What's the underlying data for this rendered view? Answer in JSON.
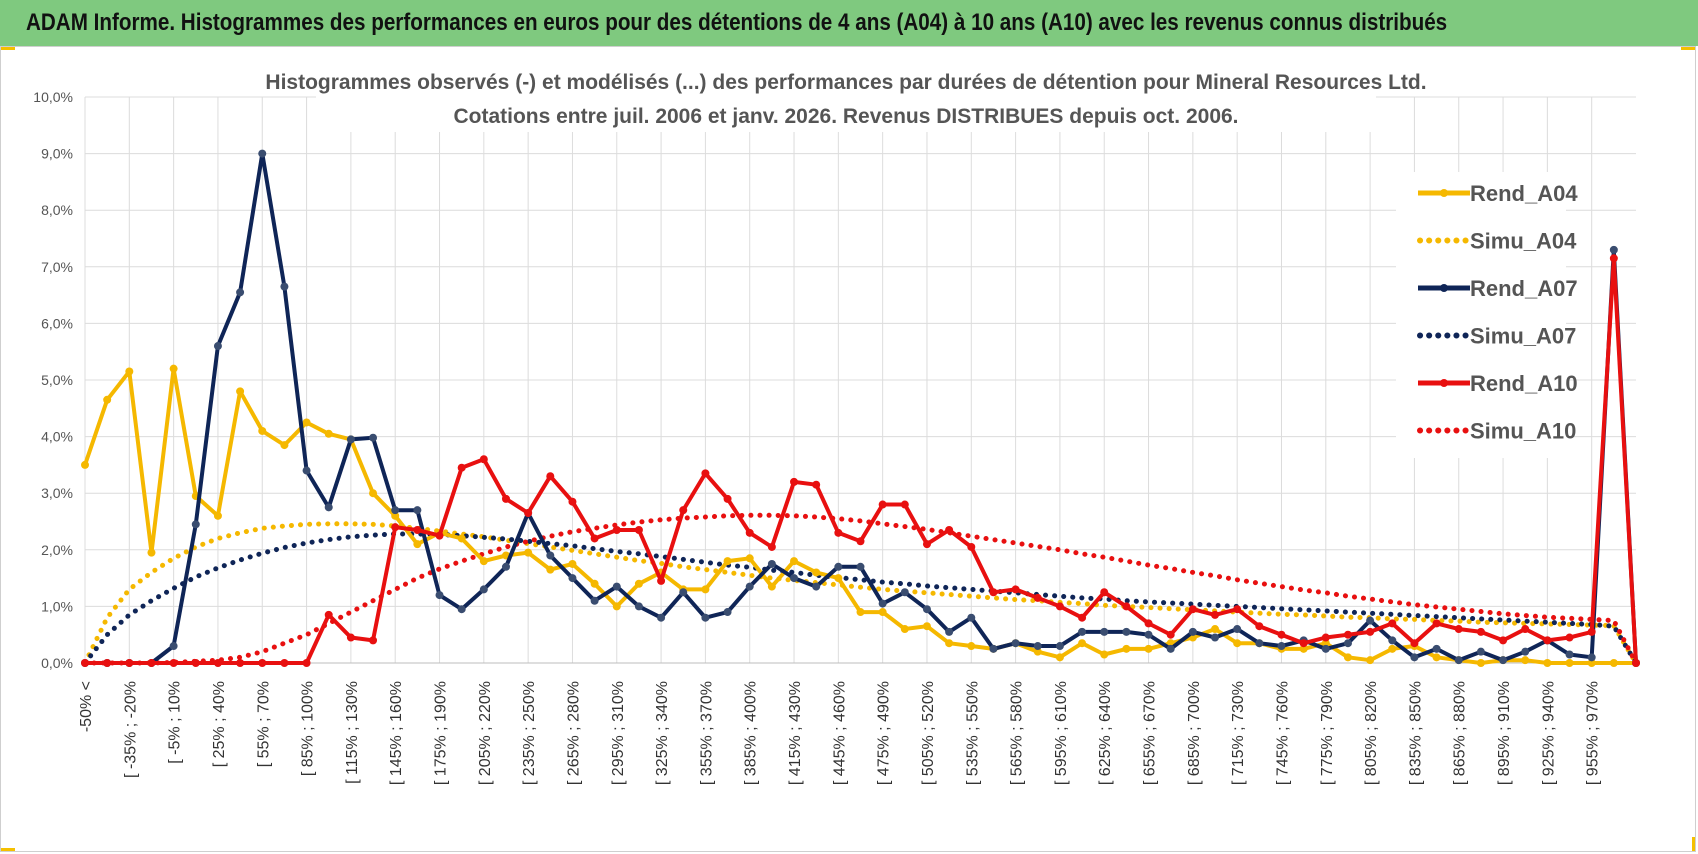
{
  "banner": {
    "title": "ADAM Informe. Histogrammes des performances en euros pour des détentions de 4 ans (A04) à 10 ans (A10) avec les revenus connus distribués"
  },
  "colors": {
    "banner_bg": "#7fc97f",
    "accent": "#f5c000"
  },
  "chart_data": {
    "type": "line",
    "title_lines": [
      "Histogrammes observés (-) et modélisés (...) des performances par durées de détention pour Mineral Resources Ltd.",
      "Cotations entre juil. 2006 et janv. 2026. Revenus DISTRIBUES depuis oct. 2006."
    ],
    "ylim": [
      0,
      10
    ],
    "yticks": [
      0,
      1,
      2,
      3,
      4,
      5,
      6,
      7,
      8,
      9,
      10
    ],
    "ytick_labels": [
      "0,0%",
      "1,0%",
      "2,0%",
      "3,0%",
      "4,0%",
      "5,0%",
      "6,0%",
      "7,0%",
      "8,0%",
      "9,0%",
      "10,0%"
    ],
    "grid": true,
    "legend_position": "right",
    "x_tick_labels": [
      "-50% <",
      "[ -35% ; -20%",
      "[ -5% ; 10%",
      "[ 25% ; 40%",
      "[ 55% ; 70%",
      "[ 85% ; 100%",
      "[ 115% ; 130%",
      "[ 145% ; 160%",
      "[ 175% ; 190%",
      "[ 205% ; 220%",
      "[ 235% ; 250%",
      "[ 265% ; 280%",
      "[ 295% ; 310%",
      "[ 325% ; 340%",
      "[ 355% ; 370%",
      "[ 385% ; 400%",
      "[ 415% ; 430%",
      "[ 445% ; 460%",
      "[ 475% ; 490%",
      "[ 505% ; 520%",
      "[ 535% ; 550%",
      "[ 565% ; 580%",
      "[ 595% ; 610%",
      "[ 625% ; 640%",
      "[ 655% ; 670%",
      "[ 685% ; 700%",
      "[ 715% ; 730%",
      "[ 745% ; 760%",
      "[ 775% ; 790%",
      "[ 805% ; 820%",
      "[ 835% ; 850%",
      "[ 865% ; 880%",
      "[ 895% ; 910%",
      "[ 925% ; 940%",
      "[ 955% ; 970%"
    ],
    "series": [
      {
        "name": "Rend_A04",
        "style": "solid",
        "color": "#f5b800",
        "width": 4,
        "marker": true,
        "values": [
          3.5,
          4.65,
          5.15,
          1.95,
          5.2,
          2.95,
          2.6,
          4.8,
          4.1,
          3.85,
          4.25,
          4.05,
          3.95,
          3.0,
          2.6,
          2.1,
          2.3,
          2.2,
          1.8,
          1.9,
          1.95,
          1.65,
          1.75,
          1.4,
          1.0,
          1.4,
          1.6,
          1.3,
          1.3,
          1.8,
          1.85,
          1.35,
          1.8,
          1.6,
          1.5,
          0.9,
          0.9,
          0.6,
          0.65,
          0.35,
          0.3,
          0.25,
          0.35,
          0.2,
          0.1,
          0.35,
          0.15,
          0.25,
          0.25,
          0.35,
          0.45,
          0.6,
          0.35,
          0.35,
          0.25,
          0.25,
          0.35,
          0.1,
          0.05,
          0.25,
          0.3,
          0.1,
          0.05,
          0.0,
          0.05,
          0.05,
          0.0,
          0.0,
          0.0,
          0.0,
          0.0
        ]
      },
      {
        "name": "Simu_A04",
        "style": "dotted",
        "color": "#f5b800",
        "width": 5,
        "marker": false,
        "values": [
          0.0,
          0.8,
          1.3,
          1.6,
          1.85,
          2.05,
          2.2,
          2.3,
          2.38,
          2.42,
          2.45,
          2.46,
          2.46,
          2.45,
          2.42,
          2.38,
          2.33,
          2.28,
          2.23,
          2.17,
          2.11,
          2.05,
          1.99,
          1.93,
          1.87,
          1.81,
          1.76,
          1.7,
          1.65,
          1.6,
          1.55,
          1.5,
          1.46,
          1.42,
          1.38,
          1.34,
          1.3,
          1.27,
          1.24,
          1.21,
          1.18,
          1.15,
          1.12,
          1.1,
          1.07,
          1.05,
          1.02,
          1.0,
          0.98,
          0.96,
          0.94,
          0.92,
          0.9,
          0.88,
          0.86,
          0.85,
          0.83,
          0.81,
          0.8,
          0.78,
          0.77,
          0.75,
          0.74,
          0.72,
          0.71,
          0.7,
          0.69,
          0.68,
          0.67,
          0.66,
          0.0
        ]
      },
      {
        "name": "Rend_A07",
        "style": "solid",
        "color": "#0f2557",
        "width": 4,
        "marker": true,
        "values": [
          0.0,
          0.0,
          0.0,
          0.0,
          0.3,
          2.45,
          5.6,
          6.55,
          9.0,
          6.65,
          3.4,
          2.75,
          3.95,
          3.98,
          2.7,
          2.7,
          1.2,
          0.95,
          1.3,
          1.7,
          2.65,
          1.9,
          1.5,
          1.1,
          1.35,
          1.0,
          0.8,
          1.25,
          0.8,
          0.9,
          1.35,
          1.75,
          1.5,
          1.35,
          1.7,
          1.7,
          1.05,
          1.25,
          0.95,
          0.55,
          0.8,
          0.25,
          0.35,
          0.3,
          0.3,
          0.55,
          0.55,
          0.55,
          0.5,
          0.25,
          0.55,
          0.45,
          0.6,
          0.35,
          0.3,
          0.4,
          0.25,
          0.35,
          0.75,
          0.4,
          0.1,
          0.25,
          0.05,
          0.2,
          0.05,
          0.2,
          0.4,
          0.15,
          0.1,
          7.3,
          0.0
        ]
      },
      {
        "name": "Simu_A07",
        "style": "dotted",
        "color": "#0f2557",
        "width": 5,
        "marker": false,
        "values": [
          0.0,
          0.5,
          0.85,
          1.1,
          1.32,
          1.52,
          1.68,
          1.82,
          1.94,
          2.04,
          2.12,
          2.18,
          2.23,
          2.26,
          2.28,
          2.28,
          2.27,
          2.25,
          2.22,
          2.19,
          2.15,
          2.11,
          2.07,
          2.02,
          1.97,
          1.93,
          1.88,
          1.83,
          1.78,
          1.73,
          1.69,
          1.64,
          1.6,
          1.55,
          1.51,
          1.47,
          1.43,
          1.4,
          1.36,
          1.33,
          1.3,
          1.27,
          1.24,
          1.21,
          1.18,
          1.15,
          1.13,
          1.1,
          1.08,
          1.06,
          1.04,
          1.02,
          1.0,
          0.98,
          0.96,
          0.94,
          0.92,
          0.9,
          0.88,
          0.86,
          0.84,
          0.82,
          0.8,
          0.78,
          0.76,
          0.74,
          0.72,
          0.7,
          0.68,
          0.65,
          0.0
        ]
      },
      {
        "name": "Rend_A10",
        "style": "solid",
        "color": "#e81010",
        "width": 4,
        "marker": true,
        "values": [
          0.0,
          0.0,
          0.0,
          0.0,
          0.0,
          0.0,
          0.0,
          0.0,
          0.0,
          0.0,
          0.0,
          0.85,
          0.45,
          0.4,
          2.4,
          2.35,
          2.25,
          3.45,
          3.6,
          2.9,
          2.65,
          3.3,
          2.85,
          2.2,
          2.35,
          2.35,
          1.45,
          2.7,
          3.35,
          2.9,
          2.3,
          2.05,
          3.2,
          3.15,
          2.3,
          2.15,
          2.8,
          2.8,
          2.1,
          2.35,
          2.05,
          1.25,
          1.3,
          1.15,
          1.0,
          0.8,
          1.25,
          1.0,
          0.7,
          0.5,
          0.95,
          0.85,
          0.95,
          0.65,
          0.5,
          0.35,
          0.45,
          0.5,
          0.55,
          0.7,
          0.35,
          0.7,
          0.6,
          0.55,
          0.4,
          0.6,
          0.4,
          0.45,
          0.55,
          7.15,
          0.0
        ]
      },
      {
        "name": "Simu_A10",
        "style": "dotted",
        "color": "#e81010",
        "width": 5,
        "marker": false,
        "values": [
          0.0,
          0.0,
          0.0,
          0.0,
          0.01,
          0.03,
          0.05,
          0.1,
          0.2,
          0.35,
          0.5,
          0.7,
          0.9,
          1.1,
          1.3,
          1.5,
          1.66,
          1.8,
          1.93,
          2.05,
          2.15,
          2.24,
          2.32,
          2.38,
          2.44,
          2.49,
          2.53,
          2.56,
          2.58,
          2.6,
          2.61,
          2.61,
          2.6,
          2.58,
          2.55,
          2.51,
          2.46,
          2.41,
          2.36,
          2.3,
          2.24,
          2.18,
          2.12,
          2.06,
          2.0,
          1.93,
          1.87,
          1.8,
          1.73,
          1.67,
          1.6,
          1.54,
          1.47,
          1.41,
          1.35,
          1.29,
          1.24,
          1.18,
          1.13,
          1.08,
          1.03,
          0.99,
          0.95,
          0.91,
          0.87,
          0.84,
          0.81,
          0.79,
          0.77,
          0.75,
          0.0
        ]
      }
    ]
  }
}
